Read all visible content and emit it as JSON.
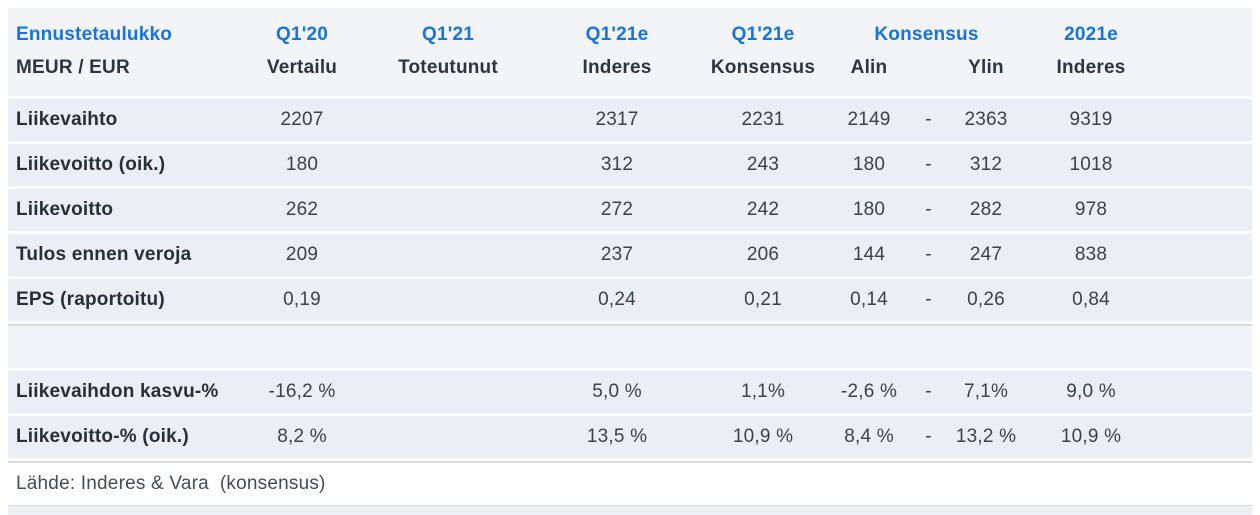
{
  "table": {
    "header": {
      "title": "Ennustetaulukko",
      "subtitle": "MEUR / EUR",
      "row1": {
        "c1": "Q1'20",
        "c2": "Q1'21",
        "c3": "Q1'21e",
        "c4": "Q1'21e",
        "c5": "Konsensus",
        "c6": "2021e"
      },
      "row2": {
        "c1": "Vertailu",
        "c2": "Toteutunut",
        "c3": "Inderes",
        "c4": "Konsensus",
        "c5": "Alin",
        "c6": "Ylin",
        "c7": "Inderes"
      }
    },
    "rows": [
      {
        "label": "Liikevaihto",
        "values": [
          "2207",
          "",
          "2317",
          "2231",
          "2149",
          "-",
          "2363",
          "9319"
        ]
      },
      {
        "label": "Liikevoitto (oik.)",
        "values": [
          "180",
          "",
          "312",
          "243",
          "180",
          "-",
          "312",
          "1018"
        ]
      },
      {
        "label": "Liikevoitto",
        "values": [
          "262",
          "",
          "272",
          "242",
          "180",
          "-",
          "282",
          "978"
        ]
      },
      {
        "label": "Tulos ennen veroja",
        "values": [
          "209",
          "",
          "237",
          "206",
          "144",
          "-",
          "247",
          "838"
        ]
      },
      {
        "label": "EPS (raportoitu)",
        "values": [
          "0,19",
          "",
          "0,24",
          "0,21",
          "0,14",
          "-",
          "0,26",
          "0,84"
        ]
      },
      {
        "label": "",
        "values": [
          "",
          "",
          "",
          "",
          "",
          "",
          "",
          ""
        ]
      },
      {
        "label": "Liikevaihdon kasvu-%",
        "values": [
          "-16,2 %",
          "",
          "5,0 %",
          "1,1%",
          "-2,6 %",
          "-",
          "7,1%",
          "9,0 %"
        ]
      },
      {
        "label": "Liikevoitto-% (oik.)",
        "values": [
          "8,2 %",
          "",
          "13,5 %",
          "10,9 %",
          "8,4 %",
          "-",
          "13,2 %",
          "10,9 %"
        ]
      }
    ],
    "footer": "Lähde: Inderes & Vara  (konsensus)"
  },
  "colors": {
    "accent_blue": "#1674e0",
    "row_band": "#ebeef4",
    "header_bg": "#f2f4f8",
    "text_dark": "#272f3a"
  }
}
